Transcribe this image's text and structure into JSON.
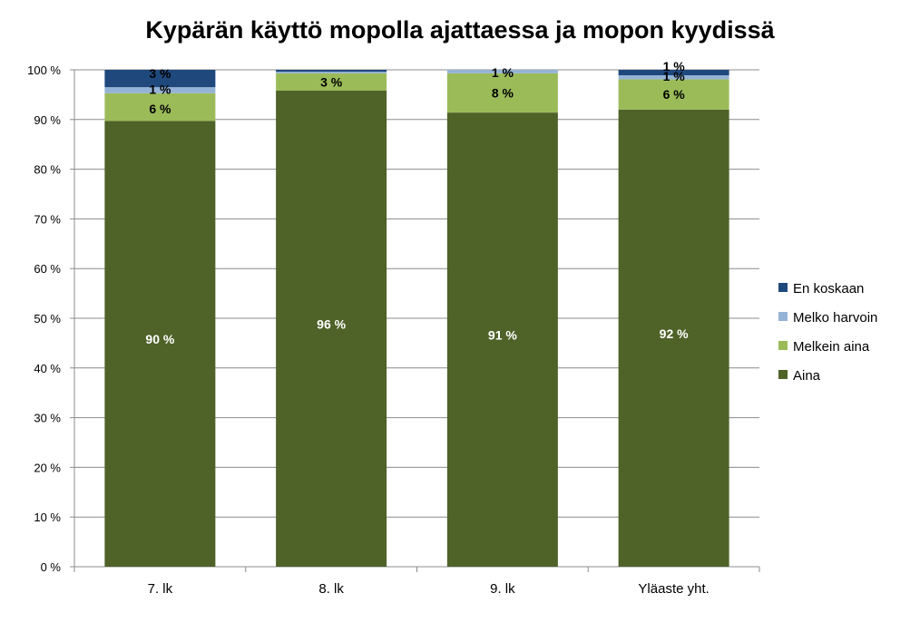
{
  "chart_data": {
    "type": "bar",
    "stacked": true,
    "title": "Kypärän käyttö mopolla ajattaessa ja mopon kyydissä",
    "categories": [
      "7. lk",
      "8. lk",
      "9. lk",
      "Yläaste yht."
    ],
    "ylim": [
      0,
      100
    ],
    "yticks": [
      0,
      10,
      20,
      30,
      40,
      50,
      60,
      70,
      80,
      90,
      100
    ],
    "ytick_labels": [
      "0 %",
      "10 %",
      "20 %",
      "30 %",
      "40 %",
      "50 %",
      "60 %",
      "70 %",
      "80 %",
      "90 %",
      "100 %"
    ],
    "grid": true,
    "legend_position": "right",
    "series": [
      {
        "name": "Aina",
        "color": "#4f6228",
        "label_color": "#ffffff",
        "values": [
          89.7,
          95.8,
          91.4,
          92.0
        ],
        "labels": [
          "90 %",
          "96 %",
          "91 %",
          "92 %"
        ]
      },
      {
        "name": "Melkein aina",
        "color": "#9bbb59",
        "label_color": "#000000",
        "values": [
          5.6,
          3.5,
          7.9,
          6.1
        ],
        "labels": [
          "6 %",
          "3 %",
          "8 %",
          "6 %"
        ]
      },
      {
        "name": "Melko harvoin",
        "color": "#95b3d7",
        "label_color": "#000000",
        "values": [
          1.2,
          0.3,
          0.7,
          0.8
        ],
        "labels": [
          "1 %",
          "",
          "1 %",
          "1 %"
        ]
      },
      {
        "name": "En koskaan",
        "color": "#1f497d",
        "label_color": "#000000",
        "values": [
          3.5,
          0.4,
          0.0,
          1.1
        ],
        "labels": [
          "3 %",
          "",
          "",
          "1 %"
        ]
      }
    ],
    "legend_order": [
      "En koskaan",
      "Melko harvoin",
      "Melkein aina",
      "Aina"
    ]
  }
}
